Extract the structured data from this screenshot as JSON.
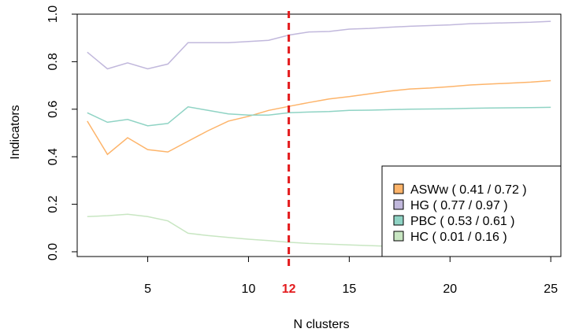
{
  "chart_data": {
    "type": "line",
    "xlabel": "N clusters",
    "ylabel": "Indicators",
    "xlim": [
      1.5,
      25.5
    ],
    "ylim": [
      -0.02,
      1.0
    ],
    "x_ticks": [
      "5",
      "10",
      "15",
      "20",
      "25"
    ],
    "y_ticks": [
      "0.0",
      "0.2",
      "0.4",
      "0.6",
      "0.8",
      "1.0"
    ],
    "vline": {
      "x": 12,
      "label": "12",
      "color": "#e31a1c"
    },
    "x": [
      2,
      3,
      4,
      5,
      6,
      7,
      8,
      9,
      10,
      11,
      12,
      13,
      14,
      15,
      16,
      17,
      18,
      19,
      20,
      21,
      22,
      23,
      24,
      25
    ],
    "series": [
      {
        "name": "ASWw",
        "legend": "ASWw ( 0.41 / 0.72 )",
        "color": "#fdb46a",
        "values": [
          0.55,
          0.41,
          0.48,
          0.43,
          0.42,
          0.465,
          0.51,
          0.55,
          0.57,
          0.595,
          0.612,
          0.628,
          0.643,
          0.653,
          0.665,
          0.676,
          0.685,
          0.689,
          0.695,
          0.702,
          0.706,
          0.71,
          0.714,
          0.72
        ]
      },
      {
        "name": "HG",
        "legend": "HG ( 0.77 / 0.97 )",
        "color": "#c1b8dc",
        "values": [
          0.84,
          0.77,
          0.795,
          0.77,
          0.79,
          0.88,
          0.88,
          0.88,
          0.885,
          0.89,
          0.912,
          0.925,
          0.927,
          0.937,
          0.94,
          0.945,
          0.949,
          0.952,
          0.955,
          0.96,
          0.962,
          0.964,
          0.966,
          0.97
        ]
      },
      {
        "name": "PBC",
        "legend": "PBC ( 0.53 / 0.61 )",
        "color": "#8fd3c4",
        "values": [
          0.585,
          0.545,
          0.557,
          0.53,
          0.54,
          0.61,
          0.595,
          0.58,
          0.575,
          0.575,
          0.585,
          0.588,
          0.59,
          0.595,
          0.596,
          0.598,
          0.6,
          0.601,
          0.602,
          0.604,
          0.605,
          0.606,
          0.607,
          0.608
        ]
      },
      {
        "name": "HC",
        "legend": "HC ( 0.01 / 0.16 )",
        "color": "#c8e6c2",
        "values": [
          0.148,
          0.152,
          0.158,
          0.148,
          0.13,
          0.078,
          0.068,
          0.06,
          0.053,
          0.047,
          0.04,
          0.035,
          0.032,
          0.029,
          0.026,
          0.023,
          0.021,
          0.019,
          0.017,
          0.015,
          0.014,
          0.012,
          0.011,
          0.01
        ]
      }
    ],
    "legend_position": "bottom-right",
    "grid": false
  }
}
